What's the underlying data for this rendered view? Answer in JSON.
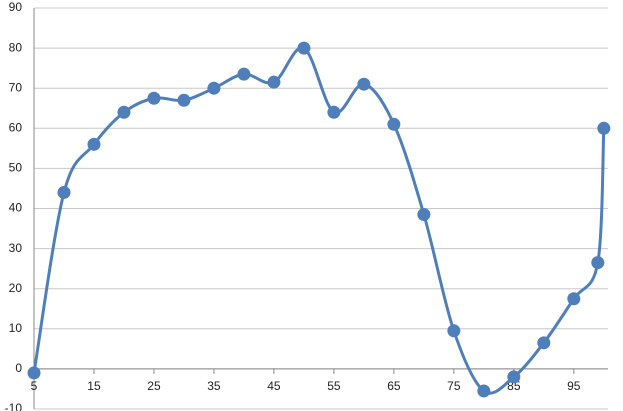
{
  "chart_data": {
    "type": "scatter",
    "smooth": true,
    "color": "#4f7fbb",
    "x": [
      5,
      10,
      15,
      20,
      25,
      30,
      35,
      40,
      45,
      50,
      55,
      60,
      65,
      70,
      75,
      80,
      85,
      90,
      95,
      99,
      100
    ],
    "values": [
      -1,
      44,
      56,
      64,
      67.5,
      67,
      70,
      73.5,
      71.5,
      80,
      64,
      71,
      61,
      38.5,
      9.5,
      -5.5,
      -2,
      6.5,
      17.5,
      26.5,
      60
    ],
    "xlim": [
      5,
      100.7
    ],
    "xticks": [
      5,
      15,
      25,
      35,
      45,
      55,
      65,
      75,
      85,
      95
    ],
    "ylim": [
      -10,
      90
    ],
    "yticks": [
      -10,
      0,
      10,
      20,
      30,
      40,
      50,
      60,
      70,
      80,
      90
    ],
    "grid": true
  }
}
